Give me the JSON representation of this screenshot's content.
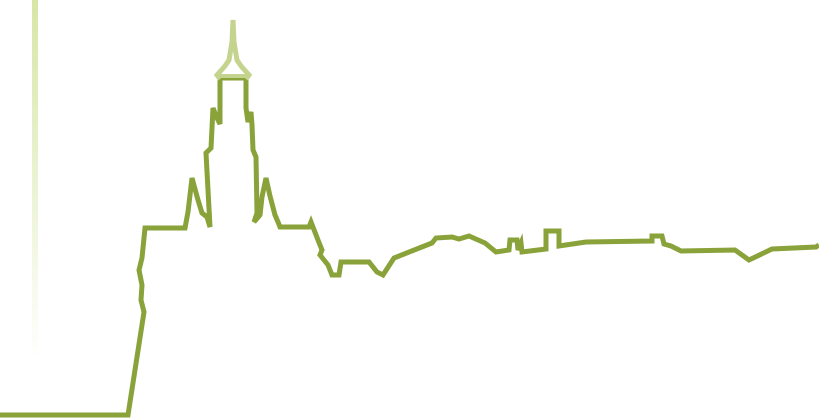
{
  "illustration": {
    "subject": "skyline-outline",
    "colors": {
      "background": "#ffffff",
      "skyline_stroke": "#8aa23a",
      "spire_tip_stroke": "#c4d48e",
      "accent_bar_top": "#d7e6a6",
      "accent_bar_bottom": "#ffffff"
    }
  }
}
